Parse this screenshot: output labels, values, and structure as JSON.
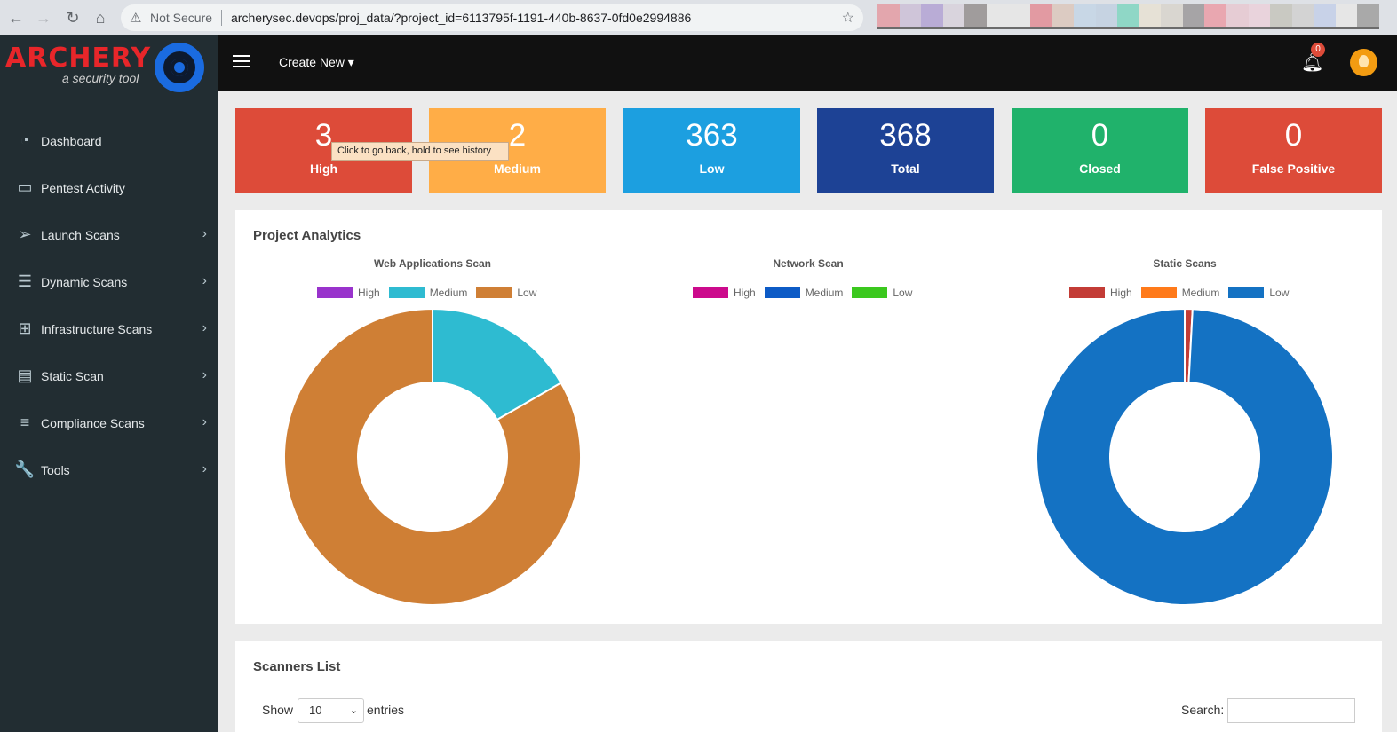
{
  "browser": {
    "security_label": "Not Secure",
    "url": "archerysec.devops/proj_data/?project_id=6113795f-1191-440b-8637-0fd0e2994886",
    "extension_colors": [
      "#e3a6ad",
      "#cfc5d9",
      "#b9acd6",
      "#d9d4dd",
      "#a09c9c",
      "#e6e6e6",
      "#e6e6e6",
      "#e29aa2",
      "#dccbc2",
      "#c8d7e6",
      "#c6d3e2",
      "#8fd7c6",
      "#e6e1d6",
      "#d9d6d0",
      "#a6a4a6",
      "#e9a7b0",
      "#e6ccd4",
      "#e9d3dc",
      "#c9c9c2",
      "#d3d3d3",
      "#c8d2e8",
      "#e6e6e6",
      "#a9a9a9"
    ]
  },
  "sidebar": {
    "brand": "ARCHERY",
    "tagline": "a security tool",
    "items": [
      {
        "label": "Dashboard",
        "icon": "dashboard-icon",
        "glyph": "◔",
        "has_arrow": false
      },
      {
        "label": "Pentest Activity",
        "icon": "laptop-icon",
        "glyph": "▭",
        "has_arrow": false
      },
      {
        "label": "Launch Scans",
        "icon": "paper-plane-icon",
        "glyph": "➢",
        "has_arrow": true
      },
      {
        "label": "Dynamic Scans",
        "icon": "list-alt-icon",
        "glyph": "☰",
        "has_arrow": true
      },
      {
        "label": "Infrastructure Scans",
        "icon": "sitemap-icon",
        "glyph": "⊞",
        "has_arrow": true
      },
      {
        "label": "Static Scan",
        "icon": "file-code-icon",
        "glyph": "▤",
        "has_arrow": true
      },
      {
        "label": "Compliance Scans",
        "icon": "list-icon",
        "glyph": "≡",
        "has_arrow": true
      },
      {
        "label": "Tools",
        "icon": "wrench-icon",
        "glyph": "🔧",
        "has_arrow": true
      }
    ],
    "chevron": "›"
  },
  "header": {
    "create_new": "Create New ▾",
    "notification_count": "0"
  },
  "stats": [
    {
      "value": "3",
      "label": "High",
      "color": "#dd4b39"
    },
    {
      "value": "2",
      "label": "Medium",
      "color": "#ffad47"
    },
    {
      "value": "363",
      "label": "Low",
      "color": "#1c9fe0"
    },
    {
      "value": "368",
      "label": "Total",
      "color": "#1d4295"
    },
    {
      "value": "0",
      "label": "Closed",
      "color": "#20b26b"
    },
    {
      "value": "0",
      "label": "False Positive",
      "color": "#dd4b39"
    }
  ],
  "tooltip": "Click to go back, hold to see history",
  "analytics": {
    "title": "Project Analytics"
  },
  "chart_data": [
    {
      "type": "pie",
      "title": "Web Applications Scan",
      "categories": [
        "High",
        "Medium",
        "Low"
      ],
      "values": [
        0,
        2,
        10
      ],
      "colors": [
        "#9933cc",
        "#2ebbd1",
        "#cf7f35"
      ],
      "donut": true
    },
    {
      "type": "pie",
      "title": "Network Scan",
      "categories": [
        "High",
        "Medium",
        "Low"
      ],
      "values": [
        0,
        0,
        0
      ],
      "colors": [
        "#cc0a8c",
        "#0d5bc6",
        "#3bc81e"
      ],
      "donut": true
    },
    {
      "type": "pie",
      "title": "Static Scans",
      "categories": [
        "High",
        "Medium",
        "Low"
      ],
      "values": [
        3,
        0,
        353
      ],
      "colors": [
        "#c33c36",
        "#ff7a1a",
        "#1472c3"
      ],
      "donut": true
    }
  ],
  "scanners": {
    "title": "Scanners List",
    "show_label": "Show",
    "page_size": "10",
    "entries_label": "entries",
    "search_label": "Search:"
  }
}
